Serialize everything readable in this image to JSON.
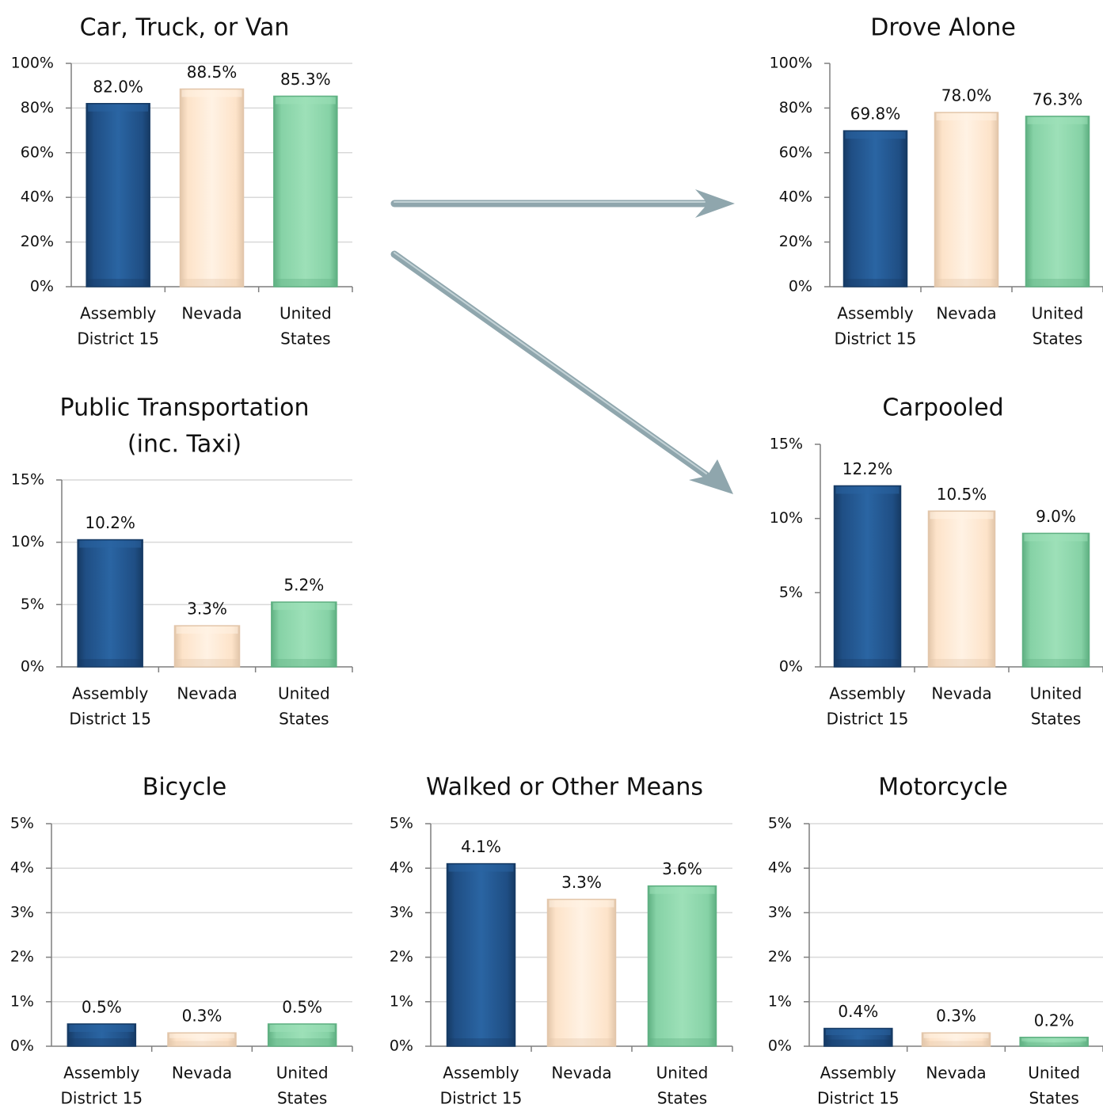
{
  "chart_data": [
    {
      "type": "bar",
      "title": "Car, Truck, or Van",
      "categories": [
        [
          "Assembly",
          "District 15"
        ],
        [
          "Nevada"
        ],
        [
          "United",
          "States"
        ]
      ],
      "values": [
        82.0,
        88.5,
        85.3
      ],
      "value_labels": [
        "82.0%",
        "88.5%",
        "85.3%"
      ],
      "ylim": [
        0,
        100
      ],
      "yticks": [
        0,
        20,
        40,
        60,
        80,
        100
      ],
      "ytick_labels": [
        "0%",
        "20%",
        "40%",
        "60%",
        "80%",
        "100%"
      ],
      "grid": true
    },
    {
      "type": "bar",
      "title": "Drove Alone",
      "categories": [
        [
          "Assembly",
          "District 15"
        ],
        [
          "Nevada"
        ],
        [
          "United",
          "States"
        ]
      ],
      "values": [
        69.8,
        78.0,
        76.3
      ],
      "value_labels": [
        "69.8%",
        "78.0%",
        "76.3%"
      ],
      "ylim": [
        0,
        100
      ],
      "yticks": [
        0,
        20,
        40,
        60,
        80,
        100
      ],
      "ytick_labels": [
        "0%",
        "20%",
        "40%",
        "60%",
        "80%",
        "100%"
      ],
      "grid": false
    },
    {
      "type": "bar",
      "title": "Public Transportation\n(inc. Taxi)",
      "categories": [
        [
          "Assembly",
          "District 15"
        ],
        [
          "Nevada"
        ],
        [
          "United",
          "States"
        ]
      ],
      "values": [
        10.2,
        3.3,
        5.2
      ],
      "value_labels": [
        "10.2%",
        "3.3%",
        "5.2%"
      ],
      "ylim": [
        0,
        15
      ],
      "yticks": [
        0,
        5,
        10,
        15
      ],
      "ytick_labels": [
        "0%",
        "5%",
        "10%",
        "15%"
      ],
      "grid": true
    },
    {
      "type": "bar",
      "title": "Carpooled",
      "categories": [
        [
          "Assembly",
          "District 15"
        ],
        [
          "Nevada"
        ],
        [
          "United",
          "States"
        ]
      ],
      "values": [
        12.2,
        10.5,
        9.0
      ],
      "value_labels": [
        "12.2%",
        "10.5%",
        "9.0%"
      ],
      "ylim": [
        0,
        15
      ],
      "yticks": [
        0,
        5,
        10,
        15
      ],
      "ytick_labels": [
        "0%",
        "5%",
        "10%",
        "15%"
      ],
      "grid": false
    },
    {
      "type": "bar",
      "title": "Bicycle",
      "categories": [
        [
          "Assembly",
          "District 15"
        ],
        [
          "Nevada"
        ],
        [
          "United",
          "States"
        ]
      ],
      "values": [
        0.5,
        0.3,
        0.5
      ],
      "value_labels": [
        "0.5%",
        "0.3%",
        "0.5%"
      ],
      "ylim": [
        0,
        5
      ],
      "yticks": [
        0,
        1,
        2,
        3,
        4,
        5
      ],
      "ytick_labels": [
        "0%",
        "1%",
        "2%",
        "3%",
        "4%",
        "5%"
      ],
      "grid": true
    },
    {
      "type": "bar",
      "title": "Walked or Other Means",
      "categories": [
        [
          "Assembly",
          "District 15"
        ],
        [
          "Nevada"
        ],
        [
          "United",
          "States"
        ]
      ],
      "values": [
        4.1,
        3.3,
        3.6
      ],
      "value_labels": [
        "4.1%",
        "3.3%",
        "3.6%"
      ],
      "ylim": [
        0,
        5
      ],
      "yticks": [
        0,
        1,
        2,
        3,
        4,
        5
      ],
      "ytick_labels": [
        "0%",
        "1%",
        "2%",
        "3%",
        "4%",
        "5%"
      ],
      "grid": true
    },
    {
      "type": "bar",
      "title": "Motorcycle",
      "categories": [
        [
          "Assembly",
          "District 15"
        ],
        [
          "Nevada"
        ],
        [
          "United",
          "States"
        ]
      ],
      "values": [
        0.4,
        0.3,
        0.2
      ],
      "value_labels": [
        "0.4%",
        "0.3%",
        "0.2%"
      ],
      "ylim": [
        0,
        5
      ],
      "yticks": [
        0,
        1,
        2,
        3,
        4,
        5
      ],
      "ytick_labels": [
        "0%",
        "1%",
        "2%",
        "3%",
        "4%",
        "5%"
      ],
      "grid": true
    }
  ],
  "bar_colors": [
    "#1f4e84",
    "#fde3c9",
    "#86d2a6"
  ],
  "axis_color": "#7f7f7f",
  "grid_color": "#d9d9d9",
  "arrow_color": "#8fa6ad"
}
